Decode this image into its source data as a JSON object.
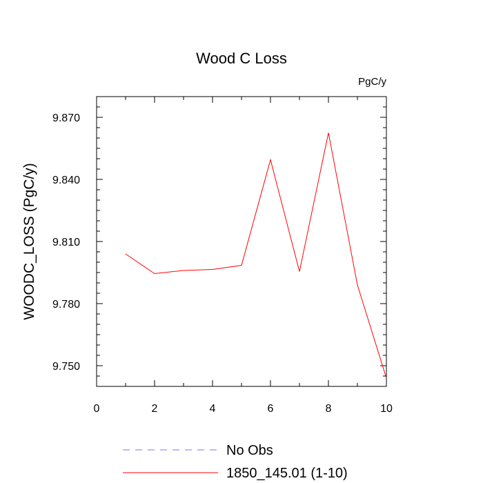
{
  "chart_data": {
    "type": "line",
    "title": "Wood C Loss",
    "units_label": "PgC/y",
    "xlabel": "",
    "ylabel": "WOODC_LOSS  (PgC/y)",
    "xlim": [
      0,
      10
    ],
    "ylim": [
      9.74,
      9.88
    ],
    "x_ticks": [
      0,
      2,
      4,
      6,
      8,
      10
    ],
    "x_tick_labels": [
      "0",
      "2",
      "4",
      "6",
      "8",
      "10"
    ],
    "y_ticks": [
      9.75,
      9.78,
      9.81,
      9.84,
      9.87
    ],
    "y_tick_labels": [
      "9.750",
      "9.780",
      "9.810",
      "9.840",
      "9.870"
    ],
    "grid": false,
    "legend_position": "bottom",
    "series": [
      {
        "name": "No Obs",
        "color": "#7777ee",
        "dash": "dashed",
        "x": [],
        "y": []
      },
      {
        "name": "1850_145.01 (1-10)",
        "color": "#ff0000",
        "dash": "solid",
        "x": [
          1,
          2,
          3,
          4,
          5,
          6,
          7,
          8,
          9,
          10
        ],
        "y": [
          9.804,
          9.7945,
          9.796,
          9.7965,
          9.7985,
          9.8495,
          9.7955,
          9.8625,
          9.789,
          9.744
        ]
      }
    ]
  }
}
